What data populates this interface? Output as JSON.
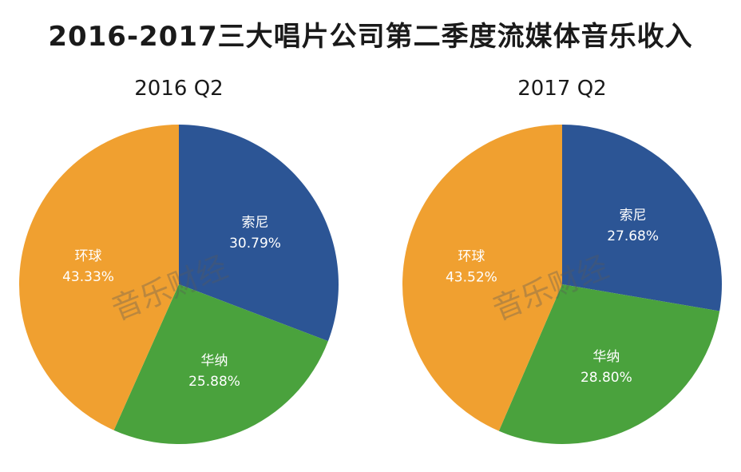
{
  "title": "2016-2017三大唱片公司第二季度流媒体音乐收入",
  "watermark": "音乐财经",
  "colors": {
    "sony": "#2c5595",
    "warner": "#4aa23d",
    "universal": "#f0a030"
  },
  "chart_data": [
    {
      "type": "pie",
      "title": "2016 Q2",
      "slices": [
        {
          "name": "索尼",
          "value": 30.79,
          "label": "30.79%",
          "color": "#2c5595"
        },
        {
          "name": "华纳",
          "value": 25.88,
          "label": "25.88%",
          "color": "#4aa23d"
        },
        {
          "name": "环球",
          "value": 43.33,
          "label": "43.33%",
          "color": "#f0a030"
        }
      ]
    },
    {
      "type": "pie",
      "title": "2017 Q2",
      "slices": [
        {
          "name": "索尼",
          "value": 27.68,
          "label": "27.68%",
          "color": "#2c5595"
        },
        {
          "name": "华纳",
          "value": 28.8,
          "label": "28.80%",
          "color": "#4aa23d"
        },
        {
          "name": "环球",
          "value": 43.52,
          "label": "43.52%",
          "color": "#f0a030"
        }
      ]
    }
  ]
}
